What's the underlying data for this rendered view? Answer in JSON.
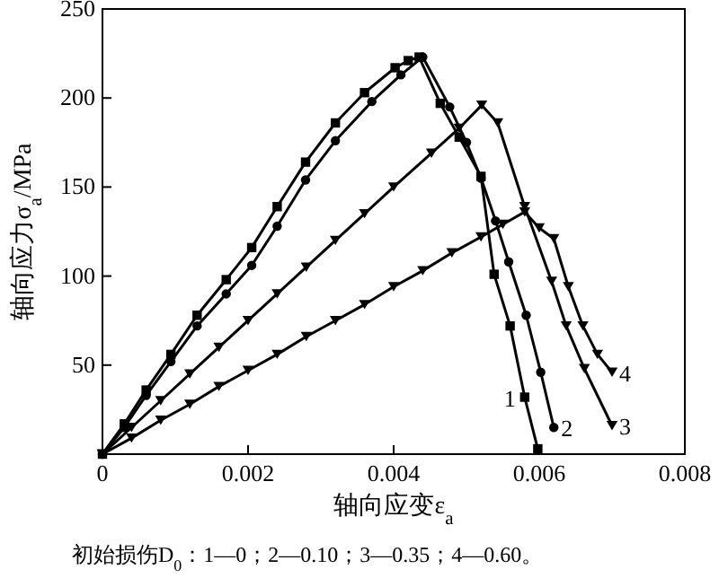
{
  "chart_data": {
    "type": "line",
    "xlabel": "轴向应变ε$_{a}$",
    "ylabel": "轴向应力σ$_{a}$/MPa",
    "xlim": [
      0,
      0.008
    ],
    "xticks": [
      0,
      0.002,
      0.004,
      0.006,
      0.008
    ],
    "ylim": [
      0,
      250
    ],
    "yticks": [
      {
        "value": 0,
        "label": null
      },
      50,
      100,
      150,
      200,
      250
    ],
    "grid": false,
    "line_style": "solid",
    "series": [
      {
        "name": "1",
        "color": "#000000",
        "marker": "square",
        "x": [
          0,
          0.0003,
          0.0006,
          0.00094,
          0.0013,
          0.0017,
          0.00205,
          0.0024,
          0.00279,
          0.0032,
          0.0036,
          0.00402,
          0.0042,
          0.00435,
          0.00464,
          0.0049,
          0.0052,
          0.00538,
          0.0056,
          0.0058,
          0.00598
        ],
        "values": [
          0,
          17,
          36,
          56,
          78,
          98,
          116,
          139,
          164,
          186,
          203,
          217,
          221,
          223,
          197,
          178,
          156,
          101,
          72,
          32,
          3
        ]
      },
      {
        "name": "2",
        "color": "#000000",
        "marker": "circle",
        "x": [
          0,
          0.0003,
          0.0006,
          0.00094,
          0.0013,
          0.0017,
          0.00205,
          0.0024,
          0.00279,
          0.0032,
          0.0037,
          0.0041,
          0.0044,
          0.00477,
          0.005,
          0.0052,
          0.0054,
          0.00558,
          0.00582,
          0.00602,
          0.0062
        ],
        "values": [
          0,
          15,
          33,
          52,
          72,
          90,
          106,
          128,
          154,
          176,
          198,
          213,
          223,
          195,
          175,
          155,
          131,
          108,
          78,
          46,
          15
        ]
      },
      {
        "name": "3",
        "color": "#000000",
        "marker": "triangle",
        "x": [
          0,
          0.0004,
          0.0008,
          0.0012,
          0.0016,
          0.002,
          0.0024,
          0.0028,
          0.0032,
          0.0036,
          0.004,
          0.00452,
          0.0049,
          0.00521,
          0.00543,
          0.0058,
          0.00617,
          0.00637,
          0.00662,
          0.007
        ],
        "values": [
          0,
          15,
          30,
          45,
          60,
          75,
          90,
          105,
          120,
          135,
          150,
          169,
          183,
          196,
          186,
          139,
          97,
          72,
          48,
          16
        ]
      },
      {
        "name": "4",
        "color": "#000000",
        "marker": "triangle",
        "x": [
          0,
          0.0004,
          0.0008,
          0.0012,
          0.0016,
          0.002,
          0.0024,
          0.0028,
          0.0032,
          0.0036,
          0.004,
          0.0044,
          0.0048,
          0.0052,
          0.0055,
          0.0058,
          0.006,
          0.0062,
          0.0064,
          0.0066,
          0.0068,
          0.007
        ],
        "values": [
          0,
          9,
          19,
          28,
          38,
          47,
          56,
          66,
          75,
          84,
          94,
          103,
          113,
          122,
          129,
          136,
          127,
          121,
          94,
          72,
          56,
          46
        ]
      }
    ],
    "annotations": [
      "初始损伤D$_{0}$：1—0；2—0.10；3—0.35；4—0.60。"
    ]
  }
}
